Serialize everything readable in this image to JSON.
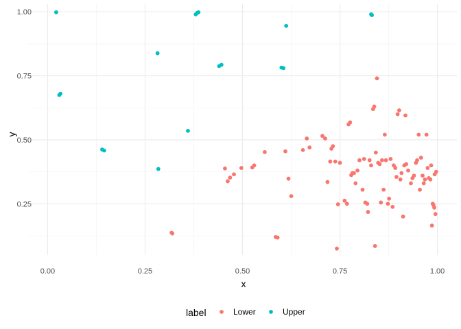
{
  "chart_data": {
    "type": "scatter",
    "xlabel": "x",
    "ylabel": "y",
    "xlim": [
      -0.05,
      1.05
    ],
    "ylim": [
      0.05,
      1.03
    ],
    "x_ticks": [
      0.0,
      0.25,
      0.5,
      0.75,
      1.0
    ],
    "x_tick_labels": [
      "0.00",
      "0.25",
      "0.50",
      "0.75",
      "1.00"
    ],
    "y_ticks": [
      0.25,
      0.5,
      0.75,
      1.0
    ],
    "y_tick_labels": [
      "0.25",
      "0.50",
      "0.75",
      "1.00"
    ],
    "grid": true,
    "legend_position": "bottom",
    "legend_title": "label",
    "series": [
      {
        "name": "Lower",
        "color": "#F8766D",
        "points": [
          [
            0.318,
            0.137
          ],
          [
            0.32,
            0.134
          ],
          [
            0.585,
            0.12
          ],
          [
            0.59,
            0.118
          ],
          [
            0.455,
            0.388
          ],
          [
            0.462,
            0.338
          ],
          [
            0.468,
            0.352
          ],
          [
            0.478,
            0.365
          ],
          [
            0.497,
            0.39
          ],
          [
            0.525,
            0.392
          ],
          [
            0.53,
            0.4
          ],
          [
            0.557,
            0.452
          ],
          [
            0.61,
            0.455
          ],
          [
            0.618,
            0.348
          ],
          [
            0.625,
            0.28
          ],
          [
            0.655,
            0.46
          ],
          [
            0.665,
            0.505
          ],
          [
            0.672,
            0.47
          ],
          [
            0.705,
            0.515
          ],
          [
            0.712,
            0.505
          ],
          [
            0.718,
            0.335
          ],
          [
            0.725,
            0.415
          ],
          [
            0.728,
            0.465
          ],
          [
            0.732,
            0.475
          ],
          [
            0.738,
            0.415
          ],
          [
            0.742,
            0.075
          ],
          [
            0.745,
            0.248
          ],
          [
            0.75,
            0.41
          ],
          [
            0.762,
            0.262
          ],
          [
            0.768,
            0.25
          ],
          [
            0.772,
            0.56
          ],
          [
            0.776,
            0.568
          ],
          [
            0.779,
            0.362
          ],
          [
            0.782,
            0.37
          ],
          [
            0.786,
            0.37
          ],
          [
            0.79,
            0.33
          ],
          [
            0.795,
            0.38
          ],
          [
            0.8,
            0.42
          ],
          [
            0.808,
            0.305
          ],
          [
            0.812,
            0.425
          ],
          [
            0.815,
            0.255
          ],
          [
            0.82,
            0.25
          ],
          [
            0.822,
            0.218
          ],
          [
            0.826,
            0.42
          ],
          [
            0.83,
            0.4
          ],
          [
            0.835,
            0.62
          ],
          [
            0.838,
            0.63
          ],
          [
            0.84,
            0.085
          ],
          [
            0.842,
            0.45
          ],
          [
            0.845,
            0.74
          ],
          [
            0.848,
            0.41
          ],
          [
            0.852,
            0.405
          ],
          [
            0.855,
            0.255
          ],
          [
            0.858,
            0.42
          ],
          [
            0.862,
            0.305
          ],
          [
            0.865,
            0.52
          ],
          [
            0.868,
            0.42
          ],
          [
            0.873,
            0.25
          ],
          [
            0.876,
            0.27
          ],
          [
            0.88,
            0.425
          ],
          [
            0.885,
            0.238
          ],
          [
            0.888,
            0.4
          ],
          [
            0.892,
            0.39
          ],
          [
            0.895,
            0.355
          ],
          [
            0.898,
            0.6
          ],
          [
            0.902,
            0.615
          ],
          [
            0.905,
            0.345
          ],
          [
            0.908,
            0.37
          ],
          [
            0.912,
            0.2
          ],
          [
            0.915,
            0.4
          ],
          [
            0.918,
            0.595
          ],
          [
            0.92,
            0.405
          ],
          [
            0.925,
            0.38
          ],
          [
            0.932,
            0.33
          ],
          [
            0.936,
            0.35
          ],
          [
            0.94,
            0.36
          ],
          [
            0.945,
            0.41
          ],
          [
            0.948,
            0.42
          ],
          [
            0.952,
            0.52
          ],
          [
            0.955,
            0.305
          ],
          [
            0.958,
            0.43
          ],
          [
            0.962,
            0.36
          ],
          [
            0.965,
            0.33
          ],
          [
            0.968,
            0.345
          ],
          [
            0.972,
            0.52
          ],
          [
            0.975,
            0.39
          ],
          [
            0.978,
            0.35
          ],
          [
            0.982,
            0.345
          ],
          [
            0.984,
            0.4
          ],
          [
            0.986,
            0.165
          ],
          [
            0.988,
            0.25
          ],
          [
            0.99,
            0.245
          ],
          [
            0.992,
            0.235
          ],
          [
            0.993,
            0.365
          ],
          [
            0.995,
            0.21
          ],
          [
            0.997,
            0.375
          ]
        ]
      },
      {
        "name": "Upper",
        "color": "#00BFC4",
        "points": [
          [
            0.022,
            0.998
          ],
          [
            0.03,
            0.675
          ],
          [
            0.033,
            0.68
          ],
          [
            0.14,
            0.462
          ],
          [
            0.145,
            0.458
          ],
          [
            0.282,
            0.838
          ],
          [
            0.284,
            0.386
          ],
          [
            0.36,
            0.535
          ],
          [
            0.38,
            0.99
          ],
          [
            0.384,
            0.996
          ],
          [
            0.387,
            0.998
          ],
          [
            0.44,
            0.788
          ],
          [
            0.446,
            0.793
          ],
          [
            0.6,
            0.782
          ],
          [
            0.605,
            0.78
          ],
          [
            0.612,
            0.945
          ],
          [
            0.83,
            0.99
          ],
          [
            0.832,
            0.987
          ]
        ]
      }
    ]
  }
}
